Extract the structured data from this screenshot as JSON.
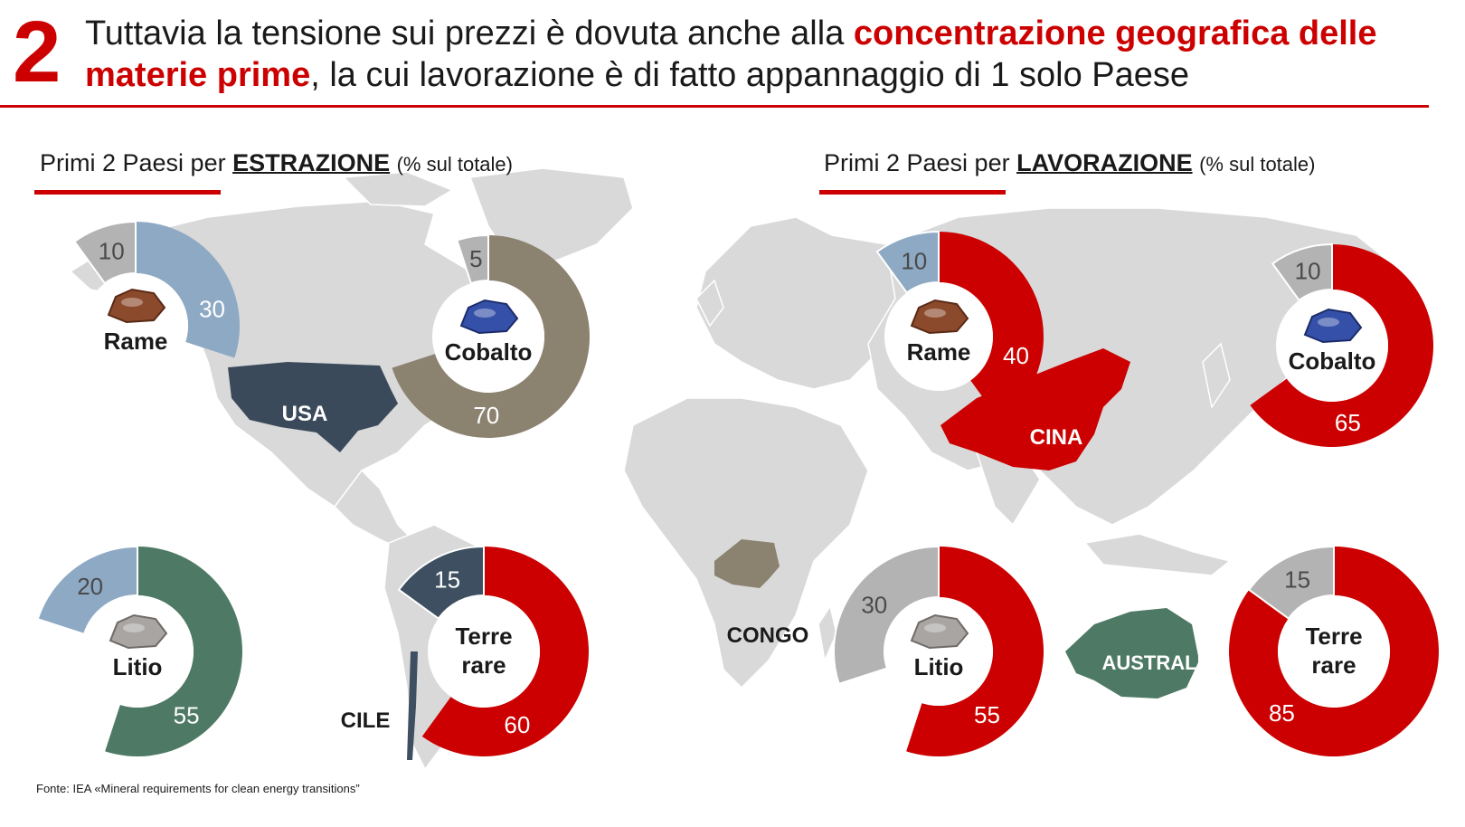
{
  "header": {
    "number": "2",
    "headline_part1": "Tuttavia la tensione sui prezzi è dovuta anche alla ",
    "headline_highlight": "concentrazione geografica delle materie prime",
    "headline_part2": ", la cui lavorazione è di fatto appannaggio di 1 solo Paese"
  },
  "panels": {
    "left": {
      "prefix": "Primi 2 Paesi per ",
      "keyword": "ESTRAZIONE",
      "unit": "(% sul totale)"
    },
    "right": {
      "prefix": "Primi 2 Paesi per ",
      "keyword": "LAVORAZIONE",
      "unit": "(% sul totale)"
    }
  },
  "colors": {
    "red": "#cc0000",
    "usa_navy": "#3a4a5a",
    "congo_taupe": "#8c8270",
    "chile_slate": "#3d4f60",
    "australia_green": "#4e7a65",
    "steel_blue": "#8ea9c4",
    "grey": "#b3b3b3",
    "map_grey": "#d9d9d9"
  },
  "countries": {
    "usa": "USA",
    "cina": "CINA",
    "congo": "CONGO",
    "cile": "CILE",
    "australia": "AUSTRALIA"
  },
  "source": "Fonte: IEA «Mineral requirements for clean energy transitions”",
  "chart_data": [
    {
      "type": "donut",
      "group": "ESTRAZIONE",
      "mineral": "Rame",
      "icon": "copper-ore-icon",
      "series": [
        {
          "name": "",
          "value": 30,
          "color": "#8ea9c4"
        },
        {
          "name": "",
          "value": 10,
          "color": "#b3b3b3"
        }
      ]
    },
    {
      "type": "donut",
      "group": "ESTRAZIONE",
      "mineral": "Cobalto",
      "icon": "cobalt-ore-icon",
      "series": [
        {
          "name": "",
          "value": 70,
          "color": "#8c8270"
        },
        {
          "name": "",
          "value": 5,
          "color": "#b3b3b3"
        }
      ]
    },
    {
      "type": "donut",
      "group": "ESTRAZIONE",
      "mineral": "Litio",
      "icon": "lithium-ore-icon",
      "series": [
        {
          "name": "",
          "value": 55,
          "color": "#4e7a65"
        },
        {
          "name": "",
          "value": 20,
          "color": "#8ea9c4"
        }
      ]
    },
    {
      "type": "donut",
      "group": "ESTRAZIONE",
      "mineral": "Terre rare",
      "series": [
        {
          "name": "",
          "value": 60,
          "color": "#cc0000"
        },
        {
          "name": "",
          "value": 15,
          "color": "#3d4f60"
        }
      ]
    },
    {
      "type": "donut",
      "group": "LAVORAZIONE",
      "mineral": "Rame",
      "icon": "copper-ore-icon",
      "series": [
        {
          "name": "",
          "value": 40,
          "color": "#cc0000"
        },
        {
          "name": "",
          "value": 10,
          "color": "#8ea9c4"
        }
      ]
    },
    {
      "type": "donut",
      "group": "LAVORAZIONE",
      "mineral": "Cobalto",
      "icon": "cobalt-ore-icon",
      "series": [
        {
          "name": "",
          "value": 65,
          "color": "#cc0000"
        },
        {
          "name": "",
          "value": 10,
          "color": "#b3b3b3"
        }
      ]
    },
    {
      "type": "donut",
      "group": "LAVORAZIONE",
      "mineral": "Litio",
      "icon": "lithium-ore-icon",
      "series": [
        {
          "name": "",
          "value": 55,
          "color": "#cc0000"
        },
        {
          "name": "",
          "value": 30,
          "color": "#b3b3b3"
        }
      ]
    },
    {
      "type": "donut",
      "group": "LAVORAZIONE",
      "mineral": "Terre rare",
      "series": [
        {
          "name": "",
          "value": 85,
          "color": "#cc0000"
        },
        {
          "name": "",
          "value": 15,
          "color": "#b3b3b3"
        }
      ]
    }
  ]
}
